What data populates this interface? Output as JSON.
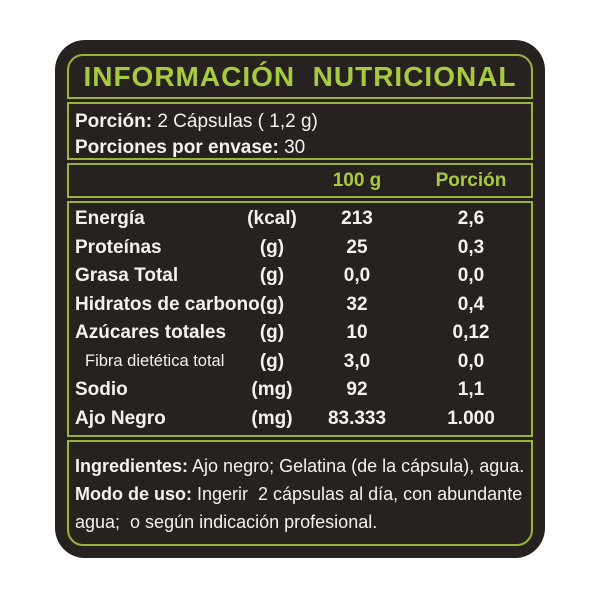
{
  "colors": {
    "page_bg": "#ffffff",
    "label_bg": "#272120",
    "accent_border": "#97b43c",
    "accent_text": "#a7cb3f",
    "text": "#f4f2ef"
  },
  "title": "INFORMACIÓN  NUTRICIONAL",
  "serving": {
    "portion_label": "Porción:",
    "portion_value": " 2 Cápsulas ( 1,2 g)",
    "per_container_label": "Porciones por envase:",
    "per_container_value": " 30"
  },
  "table": {
    "col_per100": "100 g",
    "col_portion": "Porción",
    "rows": [
      {
        "name": "Energía",
        "unit": "(kcal)",
        "per100": "213",
        "portion": "2,6"
      },
      {
        "name": "Proteínas",
        "unit": "(g)",
        "per100": "25",
        "portion": "0,3"
      },
      {
        "name": "Grasa Total",
        "unit": "(g)",
        "per100": "0,0",
        "portion": "0,0"
      },
      {
        "name": "Hidratos de carbono",
        "unit": "(g)",
        "per100": "32",
        "portion": "0,4"
      },
      {
        "name": "Azúcares totales",
        "unit": "(g)",
        "per100": "10",
        "portion": "0,12"
      },
      {
        "name": "Fibra dietética total",
        "unit": "(g)",
        "per100": "3,0",
        "portion": "0,0"
      },
      {
        "name": "Sodio",
        "unit": "(mg)",
        "per100": "92",
        "portion": "1,1"
      },
      {
        "name": "Ajo Negro",
        "unit": "(mg)",
        "per100": "83.333",
        "portion": "1.000"
      }
    ]
  },
  "footer": {
    "ingredients_label": "Ingredientes:",
    "ingredients_text": " Ajo negro; Gelatina (de la cápsula), agua.",
    "usage_label": "Modo de uso:",
    "usage_text": " Ingerir  2 cápsulas al día, con abundante",
    "usage_text2": "agua;  o según indicación profesional."
  }
}
